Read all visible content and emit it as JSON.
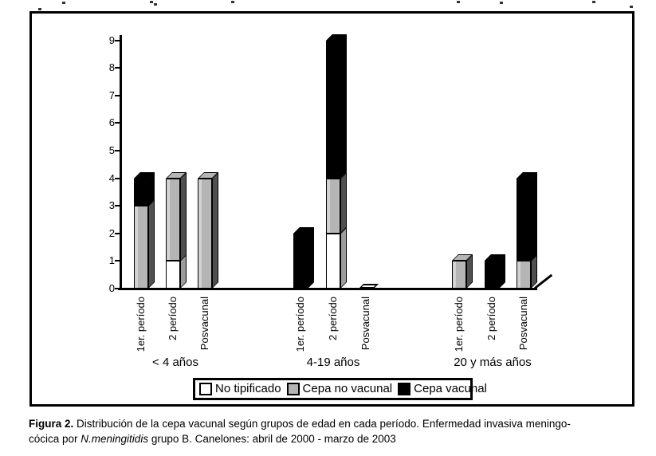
{
  "figure": {
    "caption": {
      "label_bold": "Figura 2.",
      "line1_rest": " Distribución de la cepa vacunal según grupos de edad en cada período. Enfermedad invasiva meningo-",
      "line2_pre": "cócica por ",
      "line2_italic": "N.meningitidis",
      "line2_post": " grupo B. Canelones: abril de 2000 - marzo de 2003"
    }
  },
  "chart_data": {
    "type": "bar",
    "stacked": true,
    "style_3d": true,
    "title": "",
    "xlabel": "",
    "ylabel": "",
    "ylim": [
      0,
      9
    ],
    "ytick_step": 1,
    "grid": false,
    "legend_position": "bottom-center",
    "groups": [
      "< 4 años",
      "4-19 años",
      "20 y más años"
    ],
    "categories": [
      "1er. período",
      "2 período",
      "Posvacunal",
      "1er. período",
      "2 período",
      "Posvacunal",
      "1er. período",
      "2 período",
      "Posvacunal"
    ],
    "series": [
      {
        "name": "No tipificado",
        "color": "#ffffff",
        "values": [
          0,
          1,
          0,
          0,
          2,
          0,
          0,
          0,
          0
        ]
      },
      {
        "name": "Cepa no vacunal",
        "color": "#b5b5b5",
        "values": [
          3,
          3,
          4,
          0,
          2,
          0,
          1,
          0,
          1
        ]
      },
      {
        "name": "Cepa vacunal",
        "color": "#000000",
        "values": [
          1,
          0,
          0,
          2,
          5,
          0,
          0,
          1,
          3
        ]
      }
    ],
    "bar_totals": [
      4,
      4,
      4,
      2,
      9,
      0,
      1,
      1,
      4
    ]
  }
}
